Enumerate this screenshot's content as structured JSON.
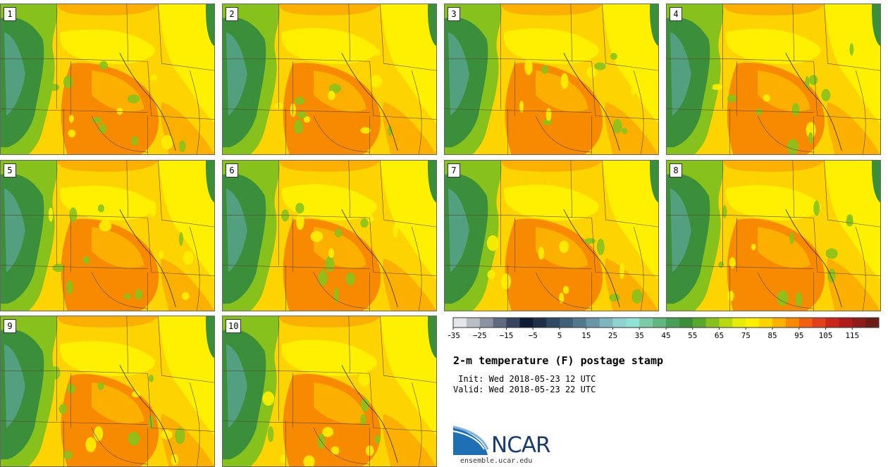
{
  "figure": {
    "title": "2-m temperature (F) postage stamp",
    "init_line": " Init: Wed 2018-05-23 12 UTC",
    "valid_line": "Valid: Wed 2018-05-23 22 UTC",
    "logo_text": "NCAR",
    "logo_url": "ensemble.ucar.edu"
  },
  "members": [
    "1",
    "2",
    "3",
    "4",
    "5",
    "6",
    "7",
    "8",
    "9",
    "10"
  ],
  "colorbar": {
    "tick_labels": [
      "−35",
      "−25",
      "−15",
      "−5",
      "5",
      "15",
      "25",
      "35",
      "45",
      "55",
      "65",
      "75",
      "85",
      "95",
      "105",
      "115"
    ],
    "colors": [
      "#e4e6ea",
      "#b9bdc6",
      "#8b93a3",
      "#5e6a80",
      "#36445e",
      "#0f1a33",
      "#1d3048",
      "#2d4a62",
      "#3e6178",
      "#52788c",
      "#6a95a6",
      "#7fb5bf",
      "#8fd3d1",
      "#8fe2d6",
      "#7dcba4",
      "#63b57f",
      "#4a9f58",
      "#3b8f3a",
      "#58a82c",
      "#87c21c",
      "#b9d80f",
      "#e6ec0a",
      "#fff000",
      "#fdd400",
      "#fbb000",
      "#f88a00",
      "#f06010",
      "#e2401a",
      "#c9261a",
      "#ad1c1a",
      "#8e1c1a",
      "#6e1c16"
    ]
  },
  "legend_colors": {
    "hot": "#f88a00",
    "warm": "#fbb000",
    "mild": "#fdd400",
    "cool": "#fff000",
    "green": "#87c21c",
    "forest": "#3b8f3a",
    "teal": "#52a080"
  }
}
